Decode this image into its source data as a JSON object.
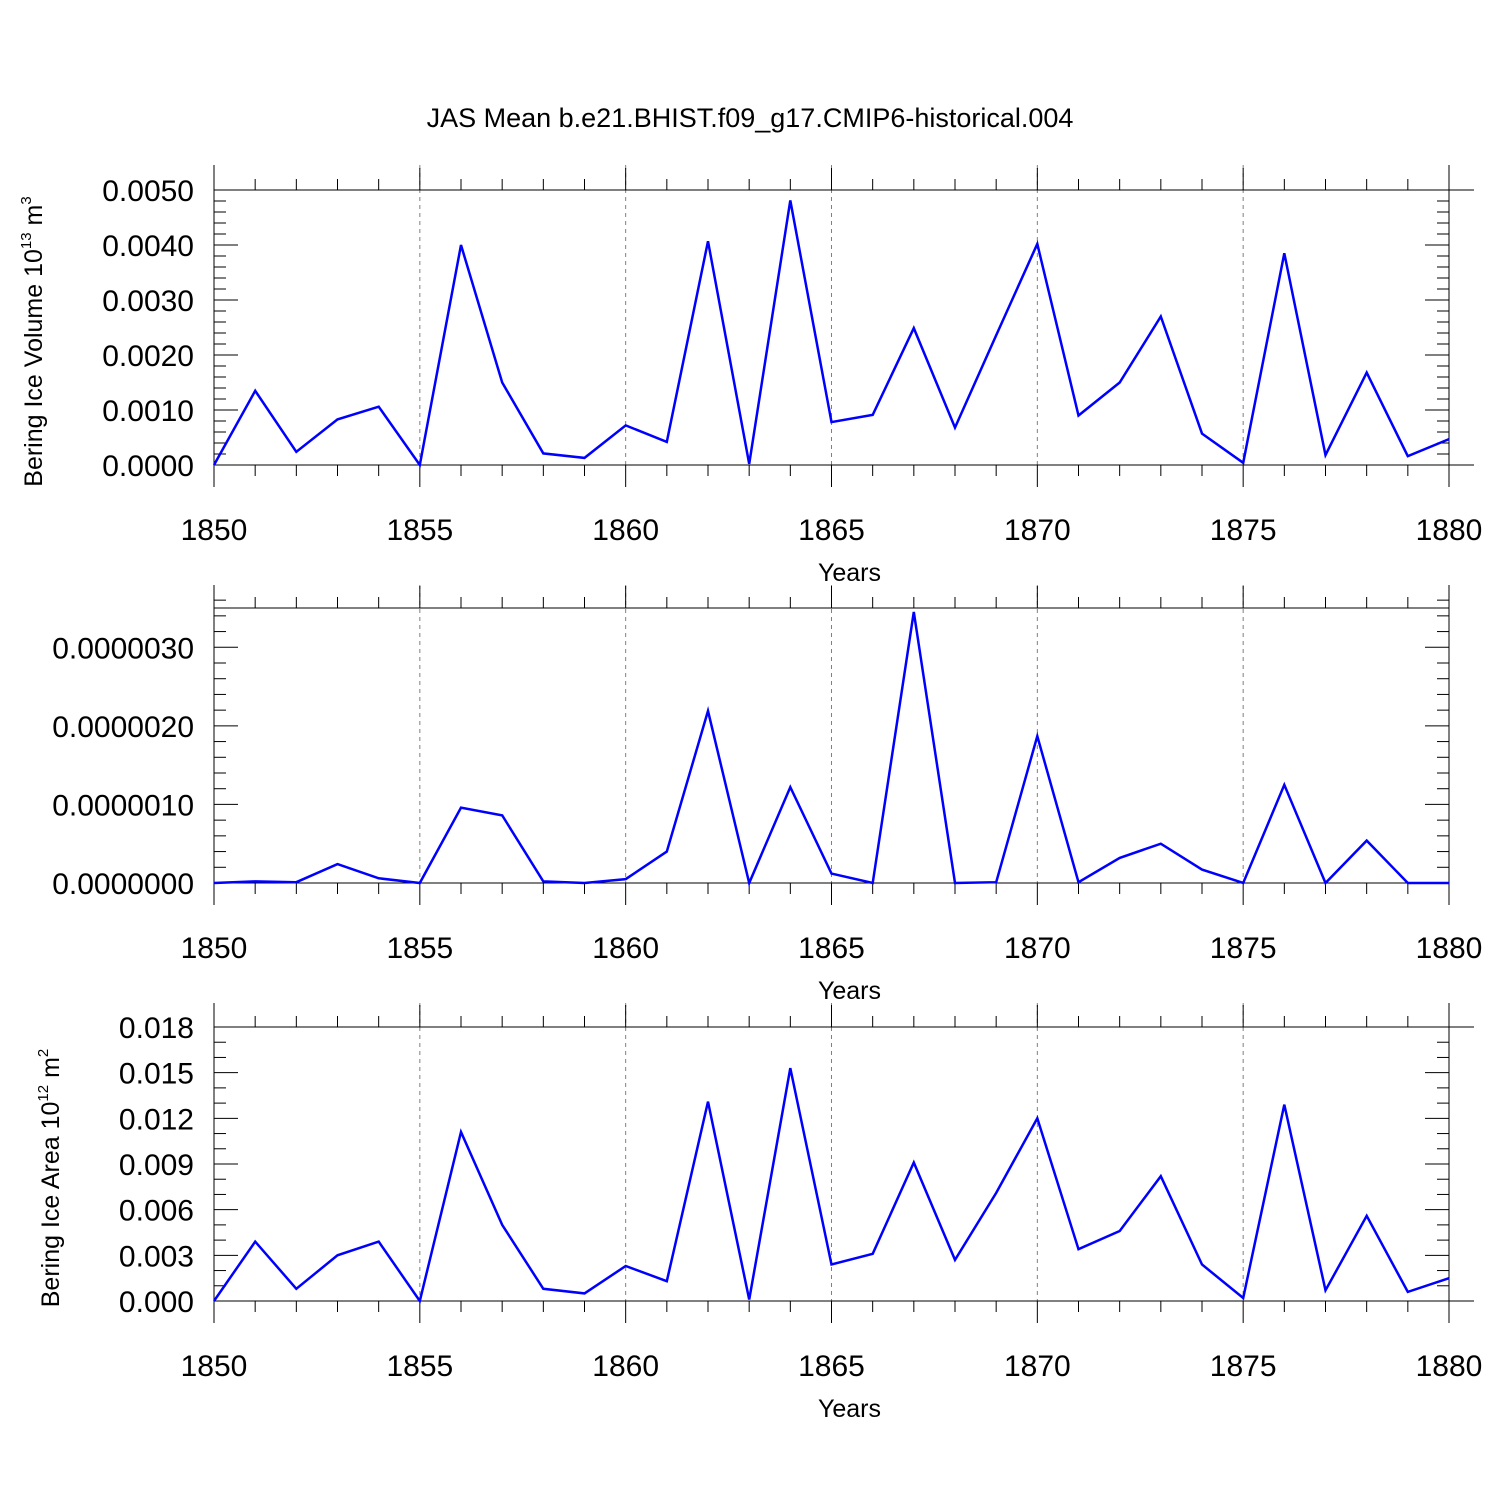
{
  "title": "JAS Mean b.e21.BHIST.f09_g17.CMIP6-historical.004",
  "series_color": "#0000ff",
  "chart_data": [
    {
      "type": "line",
      "title": "",
      "xlabel": "Years",
      "ylabel": {
        "text": "Bering Ice Volume 10",
        "sup": "13",
        "unit": " m",
        "unit_sup": "3"
      },
      "xlim": [
        1850,
        1880
      ],
      "ylim": [
        0,
        0.005
      ],
      "xticks": [
        "1850",
        "1855",
        "1860",
        "1865",
        "1870",
        "1875",
        "1880"
      ],
      "yticks": [
        "0.0000",
        "0.0010",
        "0.0020",
        "0.0030",
        "0.0040",
        "0.0050"
      ],
      "grid": "vertical-dashed",
      "x": [
        1850,
        1851,
        1852,
        1853,
        1854,
        1855,
        1856,
        1857,
        1858,
        1859,
        1860,
        1861,
        1862,
        1863,
        1864,
        1865,
        1866,
        1867,
        1868,
        1869,
        1870,
        1871,
        1872,
        1873,
        1874,
        1875,
        1876,
        1877,
        1878,
        1879,
        1880
      ],
      "y": [
        0.0,
        0.00135,
        0.00024,
        0.00083,
        0.00106,
        0.0,
        0.004,
        0.0015,
        0.00021,
        0.00013,
        0.00072,
        0.00042,
        0.00407,
        2e-05,
        0.00481,
        0.00078,
        0.00091,
        0.00249,
        0.00068,
        0.00236,
        0.00402,
        0.0009,
        0.0015,
        0.0027,
        0.00057,
        4e-05,
        0.00385,
        0.00018,
        0.00168,
        0.00016,
        0.00047
      ]
    },
    {
      "type": "line",
      "title": "",
      "xlabel": "Years",
      "ylabel": {
        "text": "",
        "sup": "",
        "unit": "",
        "unit_sup": ""
      },
      "xlim": [
        1850,
        1880
      ],
      "ylim": [
        0,
        3.5e-06
      ],
      "xticks": [
        "1850",
        "1855",
        "1860",
        "1865",
        "1870",
        "1875",
        "1880"
      ],
      "yticks": [
        "0.0000000",
        "0.0000010",
        "0.0000020",
        "0.0000030"
      ],
      "grid": "vertical-dashed",
      "x": [
        1850,
        1851,
        1852,
        1853,
        1854,
        1855,
        1856,
        1857,
        1858,
        1859,
        1860,
        1861,
        1862,
        1863,
        1864,
        1865,
        1866,
        1867,
        1868,
        1869,
        1870,
        1871,
        1872,
        1873,
        1874,
        1875,
        1876,
        1877,
        1878,
        1879,
        1880
      ],
      "y": [
        0.0,
        2e-08,
        1e-08,
        2.4e-07,
        6e-08,
        0.0,
        9.6e-07,
        8.6e-07,
        2e-08,
        0.0,
        5e-08,
        4e-07,
        2.19e-06,
        0.0,
        1.22e-06,
        1.2e-07,
        0.0,
        3.45e-06,
        0.0,
        1e-08,
        1.87e-06,
        1e-08,
        3.2e-07,
        5e-07,
        1.7e-07,
        0.0,
        1.25e-06,
        0.0,
        5.4e-07,
        0.0,
        0.0
      ]
    },
    {
      "type": "line",
      "title": "",
      "xlabel": "Years",
      "ylabel": {
        "text": "Bering Ice Area 10",
        "sup": "12",
        "unit": " m",
        "unit_sup": "2"
      },
      "xlim": [
        1850,
        1880
      ],
      "ylim": [
        0,
        0.018
      ],
      "xticks": [
        "1850",
        "1855",
        "1860",
        "1865",
        "1870",
        "1875",
        "1880"
      ],
      "yticks": [
        "0.000",
        "0.003",
        "0.006",
        "0.009",
        "0.012",
        "0.015",
        "0.018"
      ],
      "grid": "vertical-dashed",
      "x": [
        1850,
        1851,
        1852,
        1853,
        1854,
        1855,
        1856,
        1857,
        1858,
        1859,
        1860,
        1861,
        1862,
        1863,
        1864,
        1865,
        1866,
        1867,
        1868,
        1869,
        1870,
        1871,
        1872,
        1873,
        1874,
        1875,
        1876,
        1877,
        1878,
        1879,
        1880
      ],
      "y": [
        0.0,
        0.0039,
        0.0008,
        0.003,
        0.0039,
        0.0,
        0.0111,
        0.005,
        0.0008,
        0.0005,
        0.0023,
        0.0013,
        0.0131,
        0.0001,
        0.0153,
        0.0024,
        0.0031,
        0.0091,
        0.0027,
        0.0071,
        0.012,
        0.0034,
        0.0046,
        0.0082,
        0.0024,
        0.0002,
        0.0129,
        0.0007,
        0.0056,
        0.0006,
        0.0015
      ]
    }
  ]
}
